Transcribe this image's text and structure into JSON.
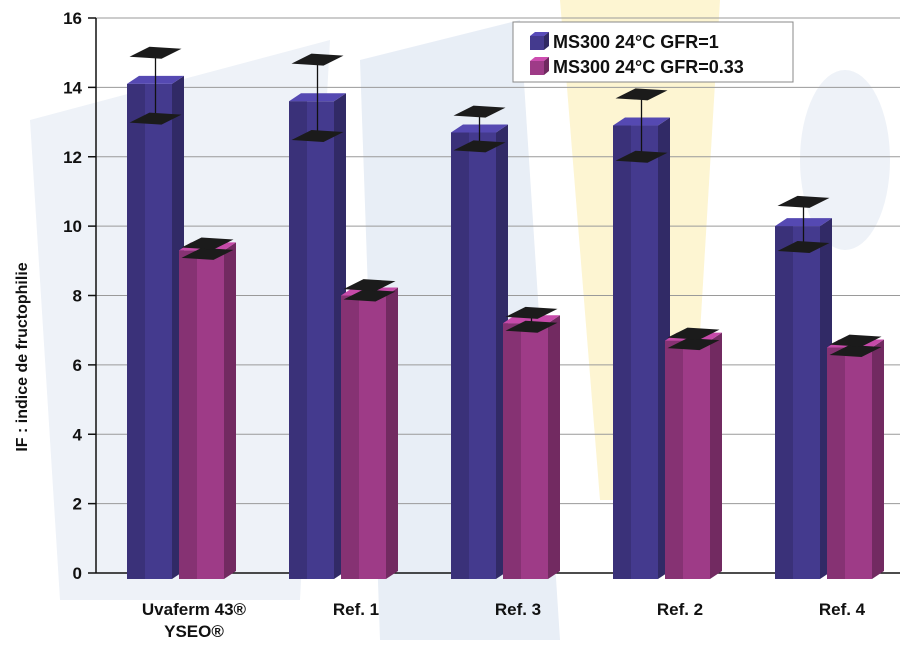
{
  "chart_data": {
    "type": "bar",
    "title": "",
    "xlabel": "",
    "ylabel": "IF : indice de fructophilie",
    "ylim": [
      0,
      16
    ],
    "yticks": [
      "0",
      "2",
      "4",
      "6",
      "8",
      "10",
      "12",
      "14",
      "16"
    ],
    "grid": true,
    "legend_position": "top-right",
    "categories": [
      [
        "Uvaferm 43®",
        "YSEO®"
      ],
      [
        "Ref. 1"
      ],
      [
        "Ref. 3"
      ],
      [
        "Ref. 2"
      ],
      [
        "Ref. 4"
      ]
    ],
    "series": [
      {
        "name": "MS300 24°C GFR=1",
        "color": "#443a8e",
        "values": [
          14.1,
          13.6,
          12.7,
          12.9,
          10.0
        ],
        "error_low": [
          13.1,
          12.6,
          12.3,
          12.0,
          9.4
        ],
        "error_high": [
          15.0,
          14.8,
          13.3,
          13.8,
          10.7
        ]
      },
      {
        "name": "MS300 24°C GFR=0.33",
        "color": "#9e3b87",
        "values": [
          9.3,
          8.0,
          7.2,
          6.7,
          6.5
        ],
        "error_low": [
          9.2,
          8.0,
          7.1,
          6.6,
          6.4
        ],
        "error_high": [
          9.5,
          8.3,
          7.5,
          6.9,
          6.7
        ]
      }
    ]
  }
}
